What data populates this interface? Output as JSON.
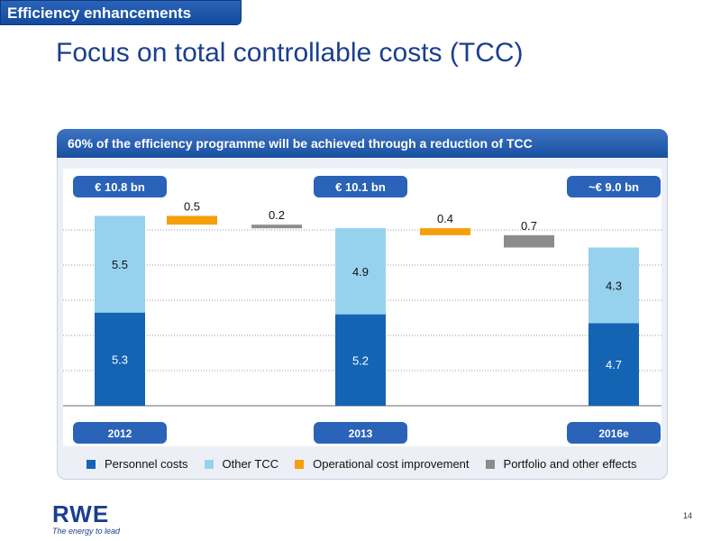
{
  "header": {
    "section_tag": "Efficiency enhancements",
    "title": "Focus on total controllable costs (TCC)"
  },
  "panel": {
    "heading": "60% of the efficiency programme will be achieved through a reduction of TCC"
  },
  "chart_data": {
    "type": "bar",
    "subtype": "stacked-waterfall",
    "ylim": [
      0,
      12
    ],
    "grid": true,
    "legend_position": "bottom",
    "columns": [
      {
        "kind": "total",
        "category": "2012",
        "total_label": "€ 10.8 bn",
        "segments": [
          {
            "series": "Personnel costs",
            "value": 5.3,
            "label": "5.3"
          },
          {
            "series": "Other TCC",
            "value": 5.5,
            "label": "5.5"
          }
        ]
      },
      {
        "kind": "delta",
        "series": "Operational cost improvement",
        "from": 10.8,
        "value": -0.5,
        "label": "0.5"
      },
      {
        "kind": "delta",
        "series": "Portfolio and other effects",
        "from": 10.3,
        "value": -0.2,
        "label": "0.2"
      },
      {
        "kind": "total",
        "category": "2013",
        "total_label": "€ 10.1 bn",
        "segments": [
          {
            "series": "Personnel costs",
            "value": 5.2,
            "label": "5.2"
          },
          {
            "series": "Other TCC",
            "value": 4.9,
            "label": "4.9"
          }
        ]
      },
      {
        "kind": "delta",
        "series": "Operational cost improvement",
        "from": 10.1,
        "value": -0.4,
        "label": "0.4"
      },
      {
        "kind": "delta",
        "series": "Portfolio and other effects",
        "from": 9.7,
        "value": -0.7,
        "label": "0.7"
      },
      {
        "kind": "total",
        "category": "2016e",
        "total_label": "~€ 9.0 bn",
        "segments": [
          {
            "series": "Personnel costs",
            "value": 4.7,
            "label": "4.7"
          },
          {
            "series": "Other TCC",
            "value": 4.3,
            "label": "4.3"
          }
        ]
      }
    ],
    "legend": [
      {
        "name": "Personnel costs",
        "color": "#1464b4"
      },
      {
        "name": "Other TCC",
        "color": "#96d2ee"
      },
      {
        "name": "Operational cost improvement",
        "color": "#f5a00a"
      },
      {
        "name": "Portfolio and other effects",
        "color": "#8c8c8c"
      }
    ]
  },
  "colors": {
    "brand_blue": "#1a3f8f",
    "badge_blue": "#2a63b8"
  },
  "footer": {
    "logo": "RWE",
    "tagline": "The energy to lead",
    "page_number": "14"
  }
}
